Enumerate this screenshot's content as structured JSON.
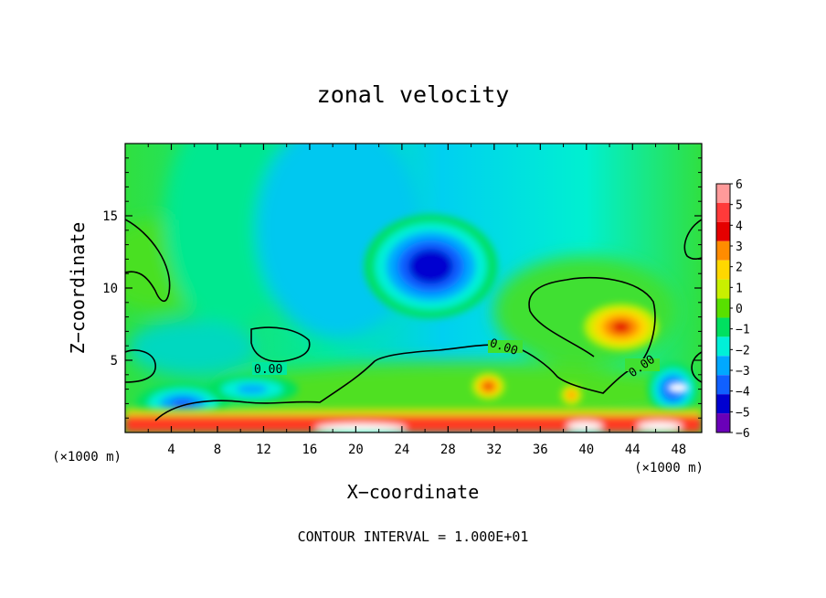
{
  "chart_data": {
    "type": "heatmap",
    "title": "zonal velocity",
    "xlabel": "X−coordinate",
    "ylabel": "Z−coordinate",
    "x_unit": "(×1000 m)",
    "y_unit": "(×1000 m)",
    "xlim": [
      0,
      50
    ],
    "ylim": [
      0,
      20
    ],
    "x_ticks": [
      4,
      8,
      12,
      16,
      20,
      24,
      28,
      32,
      36,
      40,
      44,
      48
    ],
    "y_ticks": [
      5,
      10,
      15
    ],
    "colorbar": {
      "levels": [
        6,
        5,
        4,
        3,
        2,
        1,
        0,
        -1,
        -2,
        -3,
        -4,
        -5,
        -6
      ],
      "labels": [
        "6",
        "5",
        "4",
        "3",
        "2",
        "1",
        "0",
        "−1",
        "−2",
        "−3",
        "−4",
        "−5",
        "−6"
      ],
      "colors": [
        "#ff9a9a",
        "#ff3a3a",
        "#e40000",
        "#ff8c00",
        "#ffd800",
        "#c8f000",
        "#58e000",
        "#00e060",
        "#00f0d8",
        "#00a8ff",
        "#1060ff",
        "#0000d0",
        "#6a00b8"
      ]
    },
    "features": [
      {
        "kind": "blob",
        "x": 26.5,
        "z": 11.5,
        "rx": 5.8,
        "rz": 3.6,
        "value": -5.5
      },
      {
        "kind": "blob",
        "x": 43,
        "z": 7.3,
        "rx": 3.2,
        "rz": 1.6,
        "value": 3.5
      },
      {
        "kind": "blob",
        "x": 31.5,
        "z": 3.2,
        "rx": 1.4,
        "rz": 0.9,
        "value": 3.5
      },
      {
        "kind": "blob",
        "x": 38.7,
        "z": 2.6,
        "rx": 0.9,
        "rz": 0.7,
        "value": 3
      },
      {
        "kind": "blob",
        "x": 47.5,
        "z": 3.0,
        "rx": 2.2,
        "rz": 1.8,
        "value": -4.5
      },
      {
        "kind": "blob",
        "x": 5.0,
        "z": 2.0,
        "rx": 4.0,
        "rz": 1.4,
        "value": -4
      },
      {
        "kind": "blob",
        "x": 11.0,
        "z": 3.0,
        "rx": 4.0,
        "rz": 1.0,
        "value": -3
      }
    ],
    "contour_interval": "CONTOUR INTERVAL = 1.000E+01",
    "contour_labels": [
      "0.00",
      "0.00",
      "0.00"
    ]
  }
}
